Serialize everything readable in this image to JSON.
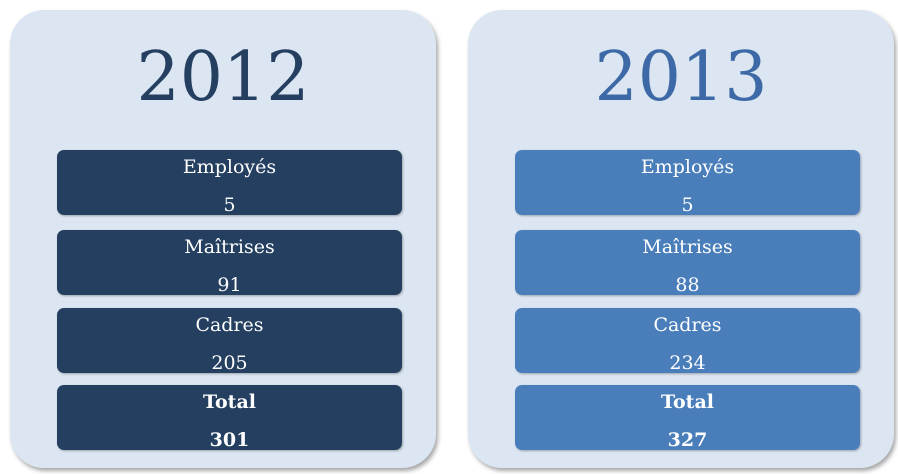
{
  "panels": [
    {
      "year": "2012",
      "items": [
        {
          "label": "Employés",
          "value": 5
        },
        {
          "label": "Maîtrises",
          "value": 91
        },
        {
          "label": "Cadres",
          "value": 205
        },
        {
          "label": "Total",
          "value": 301
        }
      ]
    },
    {
      "year": "2013",
      "items": [
        {
          "label": "Employés",
          "value": 5
        },
        {
          "label": "Maîtrises",
          "value": 88
        },
        {
          "label": "Cadres",
          "value": 234
        },
        {
          "label": "Total",
          "value": 327
        }
      ]
    }
  ]
}
